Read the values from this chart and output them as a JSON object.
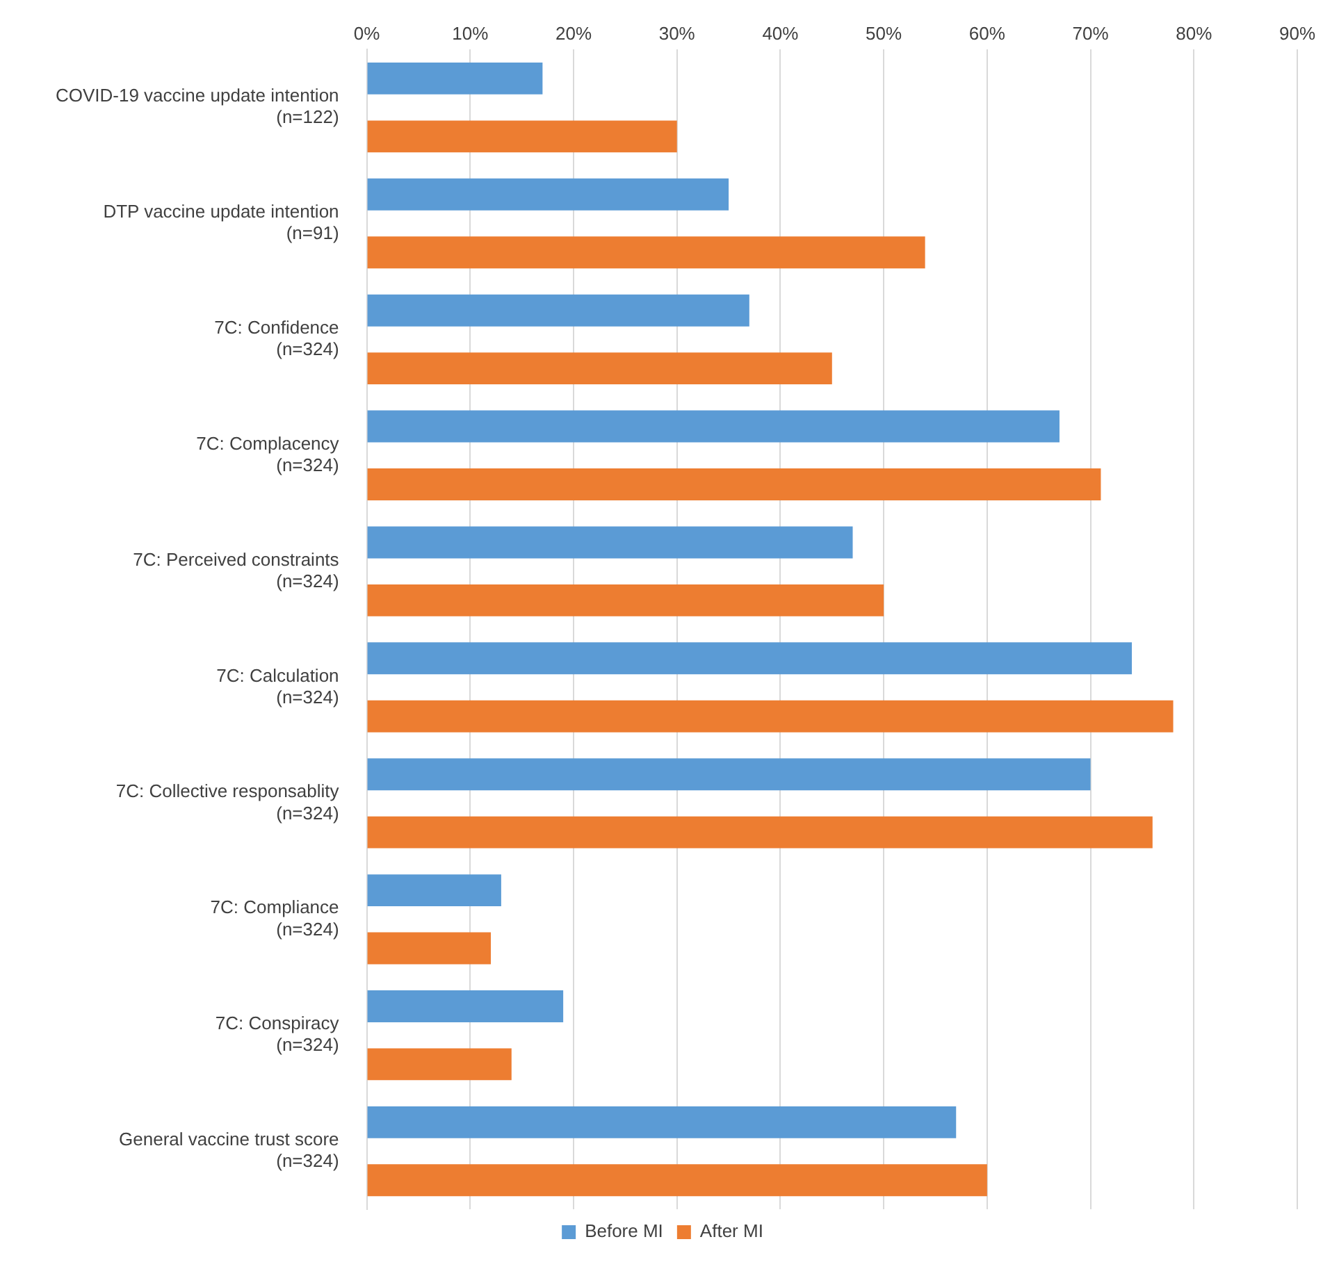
{
  "chart_data": {
    "type": "bar",
    "orientation": "horizontal",
    "categories": [
      "COVID-19 vaccine update intention\n(n=122)",
      "DTP vaccine update intention\n(n=91)",
      "7C: Confidence\n(n=324)",
      "7C: Complacency\n(n=324)",
      "7C: Perceived constraints\n(n=324)",
      "7C: Calculation\n(n=324)",
      "7C: Collective responsablity\n(n=324)",
      "7C: Compliance\n(n=324)",
      "7C: Conspiracy\n(n=324)",
      "General vaccine trust score\n(n=324)"
    ],
    "series": [
      {
        "name": "Before MI",
        "color": "#5b9bd5",
        "values": [
          17,
          35,
          37,
          67,
          47,
          74,
          70,
          13,
          19,
          57
        ]
      },
      {
        "name": "After MI",
        "color": "#ed7d31",
        "values": [
          30,
          54,
          45,
          71,
          50,
          78,
          76,
          12,
          14,
          60
        ]
      }
    ],
    "xlim": [
      0,
      90
    ],
    "xticks": [
      {
        "value": 0,
        "label": "0%"
      },
      {
        "value": 10,
        "label": "10%"
      },
      {
        "value": 20,
        "label": "20%"
      },
      {
        "value": 30,
        "label": "30%"
      },
      {
        "value": 40,
        "label": "40%"
      },
      {
        "value": 50,
        "label": "50%"
      },
      {
        "value": 60,
        "label": "60%"
      },
      {
        "value": 70,
        "label": "70%"
      },
      {
        "value": 80,
        "label": "80%"
      },
      {
        "value": 90,
        "label": "90%"
      }
    ],
    "grid": "x",
    "legend": "bottom"
  }
}
